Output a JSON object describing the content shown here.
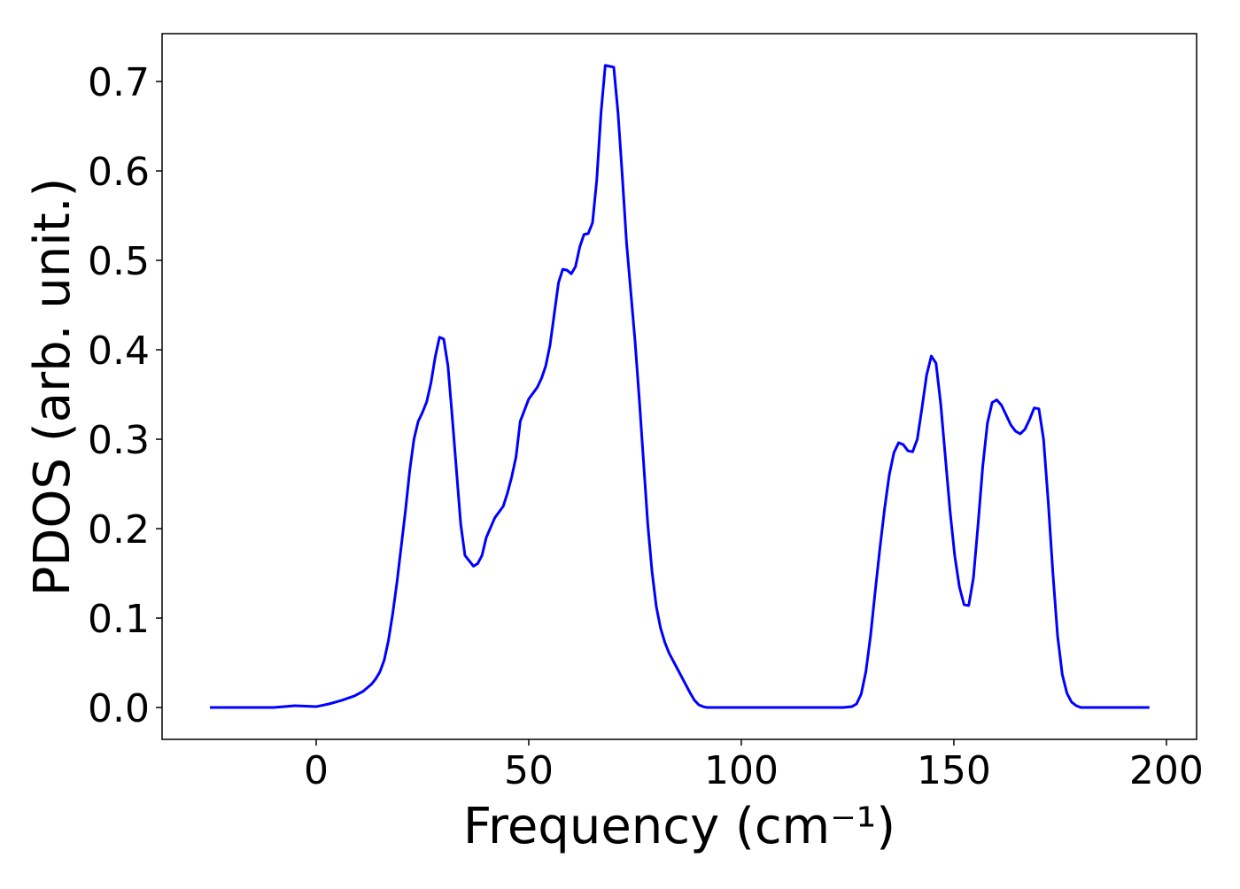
{
  "chart_data": {
    "type": "line",
    "xlabel": "Frequency (cm⁻¹)",
    "ylabel": "PDOS (arb. unit.)",
    "xlim": [
      -36.25,
      207.1
    ],
    "ylim": [
      -0.0356,
      0.7535
    ],
    "xticks": [
      0,
      50,
      100,
      150,
      200
    ],
    "yticks": [
      {
        "value": 0,
        "label": "0.0"
      },
      0.1,
      0.2,
      0.3,
      0.4,
      0.5,
      0.6,
      0.7
    ],
    "series": [
      {
        "color": "#0000ff",
        "x": [
          -25,
          -10,
          -5,
          0,
          3,
          6,
          9,
          11,
          13,
          14,
          15,
          16,
          17,
          18,
          19,
          20,
          21,
          22,
          23,
          24,
          25,
          26,
          27,
          28,
          29,
          30,
          31,
          32,
          33,
          34,
          35,
          37,
          38,
          39,
          40,
          42,
          44,
          45,
          46,
          47,
          48,
          50,
          52,
          53,
          54,
          55,
          56,
          57,
          58,
          59,
          60,
          61,
          62,
          63,
          64,
          65,
          66,
          67,
          68,
          70,
          71,
          72,
          73,
          74,
          75,
          76,
          77,
          78,
          79,
          80,
          81,
          82,
          83,
          84,
          85,
          86,
          87,
          88,
          89,
          90,
          91,
          92,
          93,
          100,
          124,
          126,
          127.1,
          128.2,
          129.3,
          130.4,
          131.5,
          132.6,
          133.7,
          134.8,
          135.9,
          137,
          138.1,
          139.2,
          140.3,
          141.4,
          142.5,
          143.6,
          144.7,
          145.8,
          146.9,
          148,
          149.1,
          150.2,
          151.3,
          152.4,
          153.5,
          154.6,
          155.7,
          156.8,
          157.9,
          159,
          160.1,
          161.2,
          162.3,
          163.4,
          164.5,
          165.6,
          166.7,
          167.8,
          168.9,
          170,
          171.1,
          172.2,
          173.3,
          174.4,
          175.5,
          176.6,
          177.7,
          178.8,
          179.9,
          196
        ],
        "values": [
          0,
          0,
          0.002,
          0.001,
          0.004,
          0.008,
          0.013,
          0.018,
          0.026,
          0.032,
          0.04,
          0.053,
          0.075,
          0.105,
          0.14,
          0.18,
          0.22,
          0.265,
          0.3,
          0.32,
          0.33,
          0.342,
          0.363,
          0.392,
          0.414,
          0.412,
          0.382,
          0.325,
          0.265,
          0.205,
          0.17,
          0.158,
          0.161,
          0.17,
          0.19,
          0.212,
          0.225,
          0.24,
          0.258,
          0.28,
          0.32,
          0.345,
          0.358,
          0.368,
          0.382,
          0.405,
          0.44,
          0.475,
          0.49,
          0.489,
          0.485,
          0.493,
          0.515,
          0.529,
          0.53,
          0.542,
          0.59,
          0.665,
          0.718,
          0.716,
          0.665,
          0.595,
          0.52,
          0.465,
          0.41,
          0.345,
          0.275,
          0.205,
          0.152,
          0.113,
          0.089,
          0.073,
          0.061,
          0.052,
          0.043,
          0.034,
          0.025,
          0.016,
          0.008,
          0.003,
          0.001,
          0,
          0,
          0,
          0,
          0.001,
          0.004,
          0.015,
          0.04,
          0.08,
          0.13,
          0.178,
          0.222,
          0.26,
          0.285,
          0.296,
          0.294,
          0.287,
          0.286,
          0.3,
          0.335,
          0.372,
          0.393,
          0.385,
          0.34,
          0.28,
          0.22,
          0.17,
          0.135,
          0.115,
          0.114,
          0.145,
          0.205,
          0.27,
          0.318,
          0.341,
          0.344,
          0.338,
          0.327,
          0.316,
          0.309,
          0.306,
          0.311,
          0.322,
          0.335,
          0.334,
          0.3,
          0.23,
          0.15,
          0.08,
          0.037,
          0.016,
          0.006,
          0.002,
          0,
          0
        ]
      }
    ]
  }
}
